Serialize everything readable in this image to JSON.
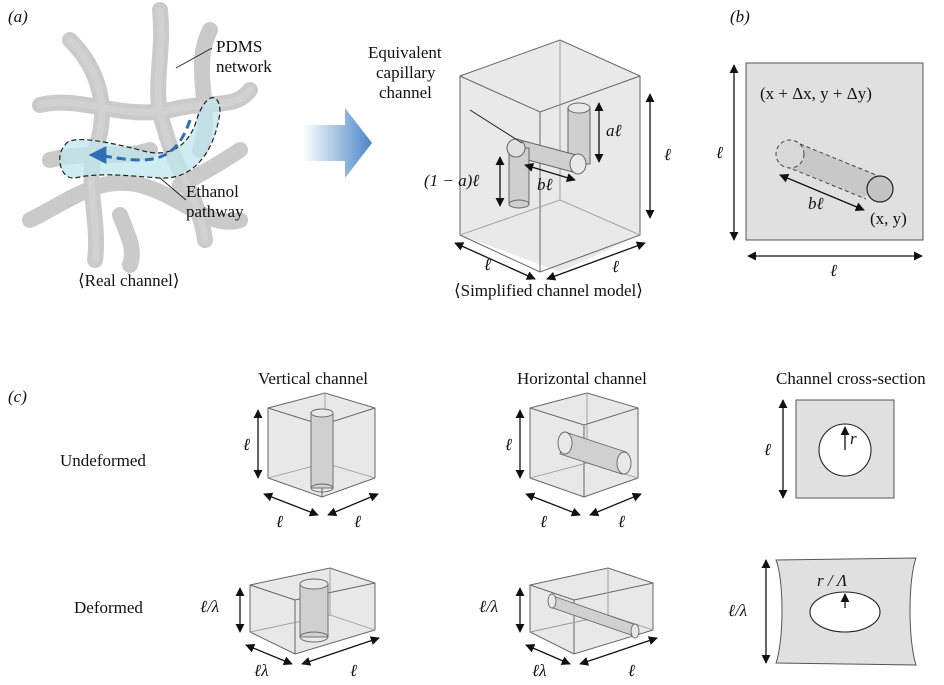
{
  "panels": {
    "a": "(a)",
    "b": "(b)",
    "c": "(c)"
  },
  "panel_a": {
    "pdms_label_1": "PDMS",
    "pdms_label_2": "network",
    "ethanol_label_1": "Ethanol",
    "ethanol_label_2": "pathway",
    "real_caption": "⟨Real channel⟩",
    "equiv_label_1": "Equivalent",
    "equiv_label_2": "capillary",
    "equiv_label_3": "channel",
    "model_caption": "⟨Simplified channel model⟩",
    "dim_al": "aℓ",
    "dim_1ma": "(1 − a)ℓ",
    "dim_bl": "bℓ",
    "dim_l_right": "ℓ",
    "dim_l_front": "ℓ",
    "dim_l_side": "ℓ"
  },
  "panel_b": {
    "top_coord": "(x + Δx, y + Δy)",
    "bottom_coord": "(x, y)",
    "dim_bl": "bℓ",
    "dim_l_left": "ℓ",
    "dim_l_bottom": "ℓ"
  },
  "panel_c": {
    "col_vertical": "Vertical channel",
    "col_horizontal": "Horizontal channel",
    "col_cross": "Channel cross-section",
    "row_undeformed": "Undeformed",
    "row_deformed": "Deformed",
    "l": "ℓ",
    "l_over_lambda": "ℓ/λ",
    "l_lambda": "ℓλ",
    "r": "r",
    "r_over_Lambda": "r / Λ"
  }
}
